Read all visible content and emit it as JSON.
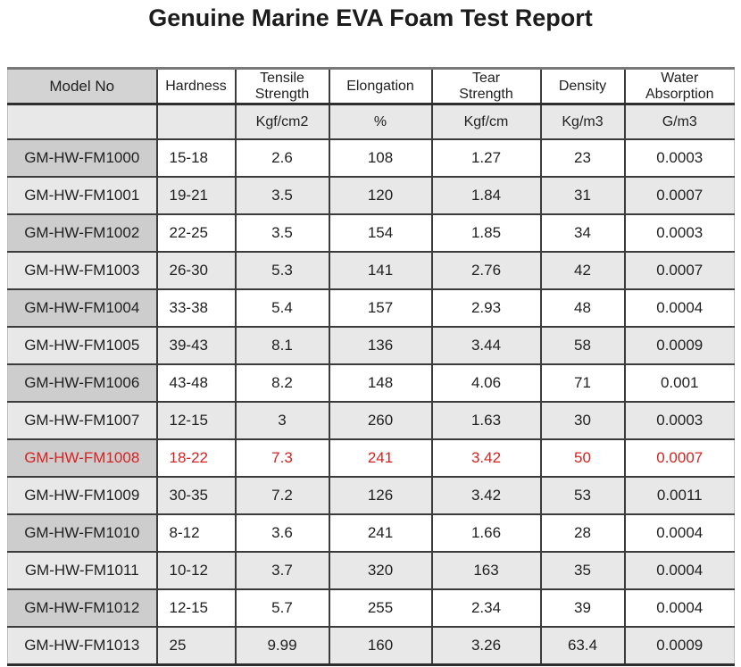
{
  "title": "Genuine Marine EVA Foam Test Report",
  "colors": {
    "highlight_red": "#d52221",
    "stripe_gray": "#e8e8e8",
    "model_col_gray": "#cdcdcd",
    "header_model_gray": "#d3d3d3",
    "border_dark": "#3b3b3b"
  },
  "table": {
    "columns": [
      {
        "key": "model",
        "label": "Model No",
        "unit": ""
      },
      {
        "key": "hardness",
        "label": "Hardness",
        "unit": ""
      },
      {
        "key": "tensile",
        "label": "Tensile\nStrength",
        "unit": "Kgf/cm2"
      },
      {
        "key": "elongation",
        "label": "Elongation",
        "unit": "%"
      },
      {
        "key": "tear",
        "label": "Tear\nStrength",
        "unit": "Kgf/cm"
      },
      {
        "key": "density",
        "label": "Density",
        "unit": "Kg/m3"
      },
      {
        "key": "water",
        "label": "Water\nAbsorption",
        "unit": "G/m3"
      }
    ],
    "rows": [
      {
        "model": "GM-HW-FM1000",
        "hardness": "15-18",
        "tensile": "2.6",
        "elongation": "108",
        "tear": "1.27",
        "density": "23",
        "water": "0.0003",
        "highlight": false
      },
      {
        "model": "GM-HW-FM1001",
        "hardness": "19-21",
        "tensile": "3.5",
        "elongation": "120",
        "tear": "1.84",
        "density": "31",
        "water": "0.0007",
        "highlight": false
      },
      {
        "model": "GM-HW-FM1002",
        "hardness": "22-25",
        "tensile": "3.5",
        "elongation": "154",
        "tear": "1.85",
        "density": "34",
        "water": "0.0003",
        "highlight": false
      },
      {
        "model": "GM-HW-FM1003",
        "hardness": "26-30",
        "tensile": "5.3",
        "elongation": "141",
        "tear": "2.76",
        "density": "42",
        "water": "0.0007",
        "highlight": false
      },
      {
        "model": "GM-HW-FM1004",
        "hardness": "33-38",
        "tensile": "5.4",
        "elongation": "157",
        "tear": "2.93",
        "density": "48",
        "water": "0.0004",
        "highlight": false
      },
      {
        "model": "GM-HW-FM1005",
        "hardness": "39-43",
        "tensile": "8.1",
        "elongation": "136",
        "tear": "3.44",
        "density": "58",
        "water": "0.0009",
        "highlight": false
      },
      {
        "model": "GM-HW-FM1006",
        "hardness": "43-48",
        "tensile": "8.2",
        "elongation": "148",
        "tear": "4.06",
        "density": "71",
        "water": "0.001",
        "highlight": false
      },
      {
        "model": "GM-HW-FM1007",
        "hardness": "12-15",
        "tensile": "3",
        "elongation": "260",
        "tear": "1.63",
        "density": "30",
        "water": "0.0003",
        "highlight": false
      },
      {
        "model": "GM-HW-FM1008",
        "hardness": "18-22",
        "tensile": "7.3",
        "elongation": "241",
        "tear": "3.42",
        "density": "50",
        "water": "0.0007",
        "highlight": true
      },
      {
        "model": "GM-HW-FM1009",
        "hardness": "30-35",
        "tensile": "7.2",
        "elongation": "126",
        "tear": "3.42",
        "density": "53",
        "water": "0.0011",
        "highlight": false
      },
      {
        "model": "GM-HW-FM1010",
        "hardness": "8-12",
        "tensile": "3.6",
        "elongation": "241",
        "tear": "1.66",
        "density": "28",
        "water": "0.0004",
        "highlight": false
      },
      {
        "model": "GM-HW-FM1011",
        "hardness": "10-12",
        "tensile": "3.7",
        "elongation": "320",
        "tear": "163",
        "density": "35",
        "water": "0.0004",
        "highlight": false
      },
      {
        "model": "GM-HW-FM1012",
        "hardness": "12-15",
        "tensile": "5.7",
        "elongation": "255",
        "tear": "2.34",
        "density": "39",
        "water": "0.0004",
        "highlight": false
      },
      {
        "model": "GM-HW-FM1013",
        "hardness": "25",
        "tensile": "9.99",
        "elongation": "160",
        "tear": "3.26",
        "density": "63.4",
        "water": "0.0009",
        "highlight": false
      }
    ]
  }
}
